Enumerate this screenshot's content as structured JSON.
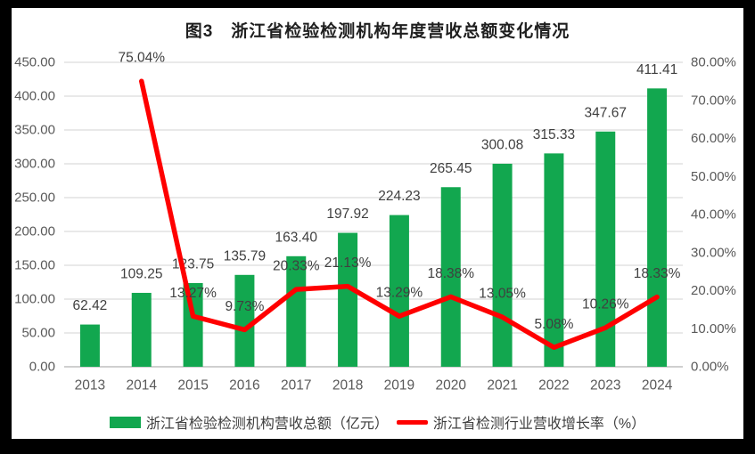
{
  "frame": {
    "background": "#000000",
    "surface": "#FFFFFF"
  },
  "colors": {
    "bar": "#12A74F",
    "line": "#FF0000",
    "grid": "#DCDCDC",
    "baseline": "#BFBFBF",
    "axis_text": "#595959",
    "label_text": "#3F3F3F",
    "title_text": "#1F1F1F"
  },
  "chart_data": {
    "type": "combo-bar-line",
    "title": "图3　浙江省检验检测机构年度营收总额变化情况",
    "categories": [
      "2013",
      "2014",
      "2015",
      "2016",
      "2017",
      "2018",
      "2019",
      "2020",
      "2021",
      "2022",
      "2023",
      "2024"
    ],
    "series": [
      {
        "name": "浙江省检验检测机构营收总额（亿元）",
        "type": "bar",
        "color": "#12A74F",
        "values": [
          62.42,
          109.25,
          123.75,
          135.79,
          163.4,
          197.92,
          224.23,
          265.45,
          300.08,
          315.33,
          347.67,
          411.41
        ],
        "labels": [
          "62.42",
          "109.25",
          "123.75",
          "135.79",
          "163.40",
          "197.92",
          "224.23",
          "265.45",
          "300.08",
          "315.33",
          "347.67",
          "411.41"
        ]
      },
      {
        "name": "浙江省检测行业营收增长率（%）",
        "type": "line",
        "color": "#FF0000",
        "values": [
          null,
          75.04,
          13.27,
          9.73,
          20.33,
          21.13,
          13.29,
          18.38,
          13.05,
          5.08,
          10.26,
          18.33
        ],
        "labels": [
          null,
          "75.04%",
          "13.27%",
          "9.73%",
          "20.33%",
          "21.13%",
          "13.29%",
          "18.38%",
          "13.05%",
          "5.08%",
          "10.26%",
          "18.33%"
        ]
      }
    ],
    "left_axis": {
      "min": 0,
      "max": 450,
      "step": 50,
      "ticks": [
        "0.00",
        "50.00",
        "100.00",
        "150.00",
        "200.00",
        "250.00",
        "300.00",
        "350.00",
        "400.00",
        "450.00"
      ]
    },
    "right_axis": {
      "min": 0,
      "max": 80,
      "step": 10,
      "ticks": [
        "0.00%",
        "10.00%",
        "20.00%",
        "30.00%",
        "40.00%",
        "50.00%",
        "60.00%",
        "70.00%",
        "80.00%"
      ]
    },
    "grid": true,
    "legend_position": "bottom"
  }
}
